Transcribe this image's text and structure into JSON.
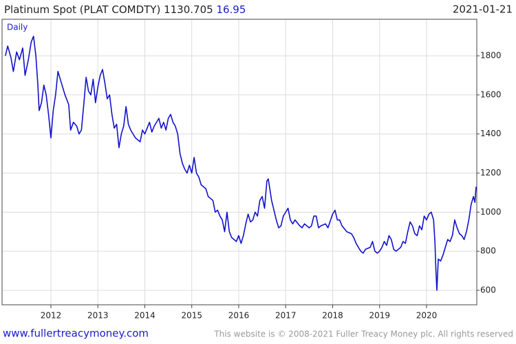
{
  "chart_data": {
    "type": "line",
    "title": "Platinum Spot (PLAT COMDTY)",
    "last_value": 1130.705,
    "change": 16.95,
    "date": "2021-01-21",
    "frequency": "Daily",
    "x": [
      2011.03,
      2011.08,
      2011.15,
      2011.2,
      2011.27,
      2011.33,
      2011.4,
      2011.45,
      2011.52,
      2011.58,
      2011.63,
      2011.68,
      2011.72,
      2011.75,
      2011.8,
      2011.85,
      2011.9,
      2011.95,
      2012.0,
      2012.05,
      2012.1,
      2012.15,
      2012.2,
      2012.25,
      2012.3,
      2012.38,
      2012.42,
      2012.48,
      2012.55,
      2012.6,
      2012.65,
      2012.7,
      2012.75,
      2012.8,
      2012.85,
      2012.9,
      2012.95,
      2013.0,
      2013.05,
      2013.1,
      2013.15,
      2013.2,
      2013.25,
      2013.3,
      2013.35,
      2013.4,
      2013.45,
      2013.5,
      2013.55,
      2013.6,
      2013.65,
      2013.7,
      2013.75,
      2013.8,
      2013.9,
      2013.95,
      2014.0,
      2014.05,
      2014.1,
      2014.15,
      2014.2,
      2014.3,
      2014.35,
      2014.4,
      2014.45,
      2014.5,
      2014.55,
      2014.6,
      2014.65,
      2014.7,
      2014.75,
      2014.8,
      2014.85,
      2014.9,
      2014.95,
      2015.0,
      2015.05,
      2015.1,
      2015.15,
      2015.2,
      2015.3,
      2015.35,
      2015.45,
      2015.5,
      2015.55,
      2015.6,
      2015.65,
      2015.7,
      2015.75,
      2015.8,
      2015.85,
      2015.9,
      2015.95,
      2016.0,
      2016.05,
      2016.1,
      2016.15,
      2016.2,
      2016.25,
      2016.3,
      2016.35,
      2016.4,
      2016.45,
      2016.5,
      2016.55,
      2016.6,
      2016.63,
      2016.7,
      2016.8,
      2016.85,
      2016.9,
      2016.95,
      2017.0,
      2017.05,
      2017.1,
      2017.15,
      2017.2,
      2017.3,
      2017.35,
      2017.4,
      2017.5,
      2017.55,
      2017.6,
      2017.65,
      2017.7,
      2017.75,
      2017.85,
      2017.9,
      2018.0,
      2018.05,
      2018.1,
      2018.15,
      2018.2,
      2018.3,
      2018.4,
      2018.45,
      2018.5,
      2018.55,
      2018.6,
      2018.65,
      2018.7,
      2018.8,
      2018.85,
      2018.9,
      2018.95,
      2019.0,
      2019.05,
      2019.1,
      2019.15,
      2019.2,
      2019.25,
      2019.3,
      2019.35,
      2019.4,
      2019.45,
      2019.5,
      2019.55,
      2019.6,
      2019.65,
      2019.7,
      2019.75,
      2019.8,
      2019.85,
      2019.9,
      2019.95,
      2020.0,
      2020.05,
      2020.1,
      2020.15,
      2020.18,
      2020.2,
      2020.22,
      2020.25,
      2020.3,
      2020.35,
      2020.4,
      2020.45,
      2020.5,
      2020.55,
      2020.6,
      2020.65,
      2020.7,
      2020.75,
      2020.8,
      2020.85,
      2020.9,
      2020.95,
      2021.0,
      2021.03,
      2021.055
    ],
    "series": [
      {
        "color": "#1111cc",
        "values": [
          1800,
          1850,
          1790,
          1720,
          1820,
          1780,
          1840,
          1700,
          1780,
          1870,
          1900,
          1800,
          1660,
          1520,
          1560,
          1650,
          1600,
          1500,
          1380,
          1520,
          1600,
          1720,
          1680,
          1640,
          1600,
          1550,
          1420,
          1460,
          1440,
          1400,
          1420,
          1550,
          1690,
          1620,
          1600,
          1680,
          1560,
          1640,
          1700,
          1730,
          1660,
          1580,
          1600,
          1500,
          1430,
          1450,
          1330,
          1400,
          1440,
          1540,
          1450,
          1420,
          1400,
          1380,
          1360,
          1420,
          1400,
          1430,
          1460,
          1410,
          1440,
          1480,
          1430,
          1460,
          1420,
          1480,
          1500,
          1460,
          1440,
          1400,
          1300,
          1250,
          1220,
          1200,
          1240,
          1200,
          1280,
          1200,
          1180,
          1140,
          1120,
          1080,
          1060,
          1000,
          1010,
          980,
          960,
          900,
          1000,
          900,
          870,
          860,
          850,
          880,
          840,
          880,
          940,
          990,
          950,
          960,
          1000,
          980,
          1060,
          1080,
          1020,
          1160,
          1170,
          1060,
          960,
          920,
          930,
          980,
          1000,
          1020,
          960,
          940,
          960,
          930,
          920,
          940,
          920,
          930,
          980,
          980,
          920,
          930,
          940,
          920,
          990,
          1010,
          960,
          960,
          930,
          900,
          890,
          870,
          840,
          820,
          800,
          790,
          810,
          820,
          850,
          800,
          790,
          800,
          820,
          850,
          830,
          880,
          860,
          810,
          800,
          810,
          820,
          850,
          840,
          900,
          950,
          930,
          890,
          880,
          930,
          910,
          980,
          960,
          990,
          1000,
          960,
          840,
          700,
          600,
          760,
          750,
          780,
          820,
          860,
          850,
          880,
          960,
          920,
          890,
          880,
          860,
          900,
          960,
          1040,
          1080,
          1050,
          1130
        ]
      }
    ],
    "xlim": [
      2010.96,
      2021.07
    ],
    "ylim": [
      526,
      1987
    ],
    "xticks": [
      2012,
      2013,
      2014,
      2015,
      2016,
      2017,
      2018,
      2019,
      2020
    ],
    "yticks": [
      600,
      800,
      1000,
      1200,
      1400,
      1600,
      1800
    ],
    "grid": true
  },
  "footer": {
    "website": "www.fullertreacymoney.com",
    "copyright": "This website is © 2008-2021 Fuller Treacy Money plc. All rights reserved"
  }
}
